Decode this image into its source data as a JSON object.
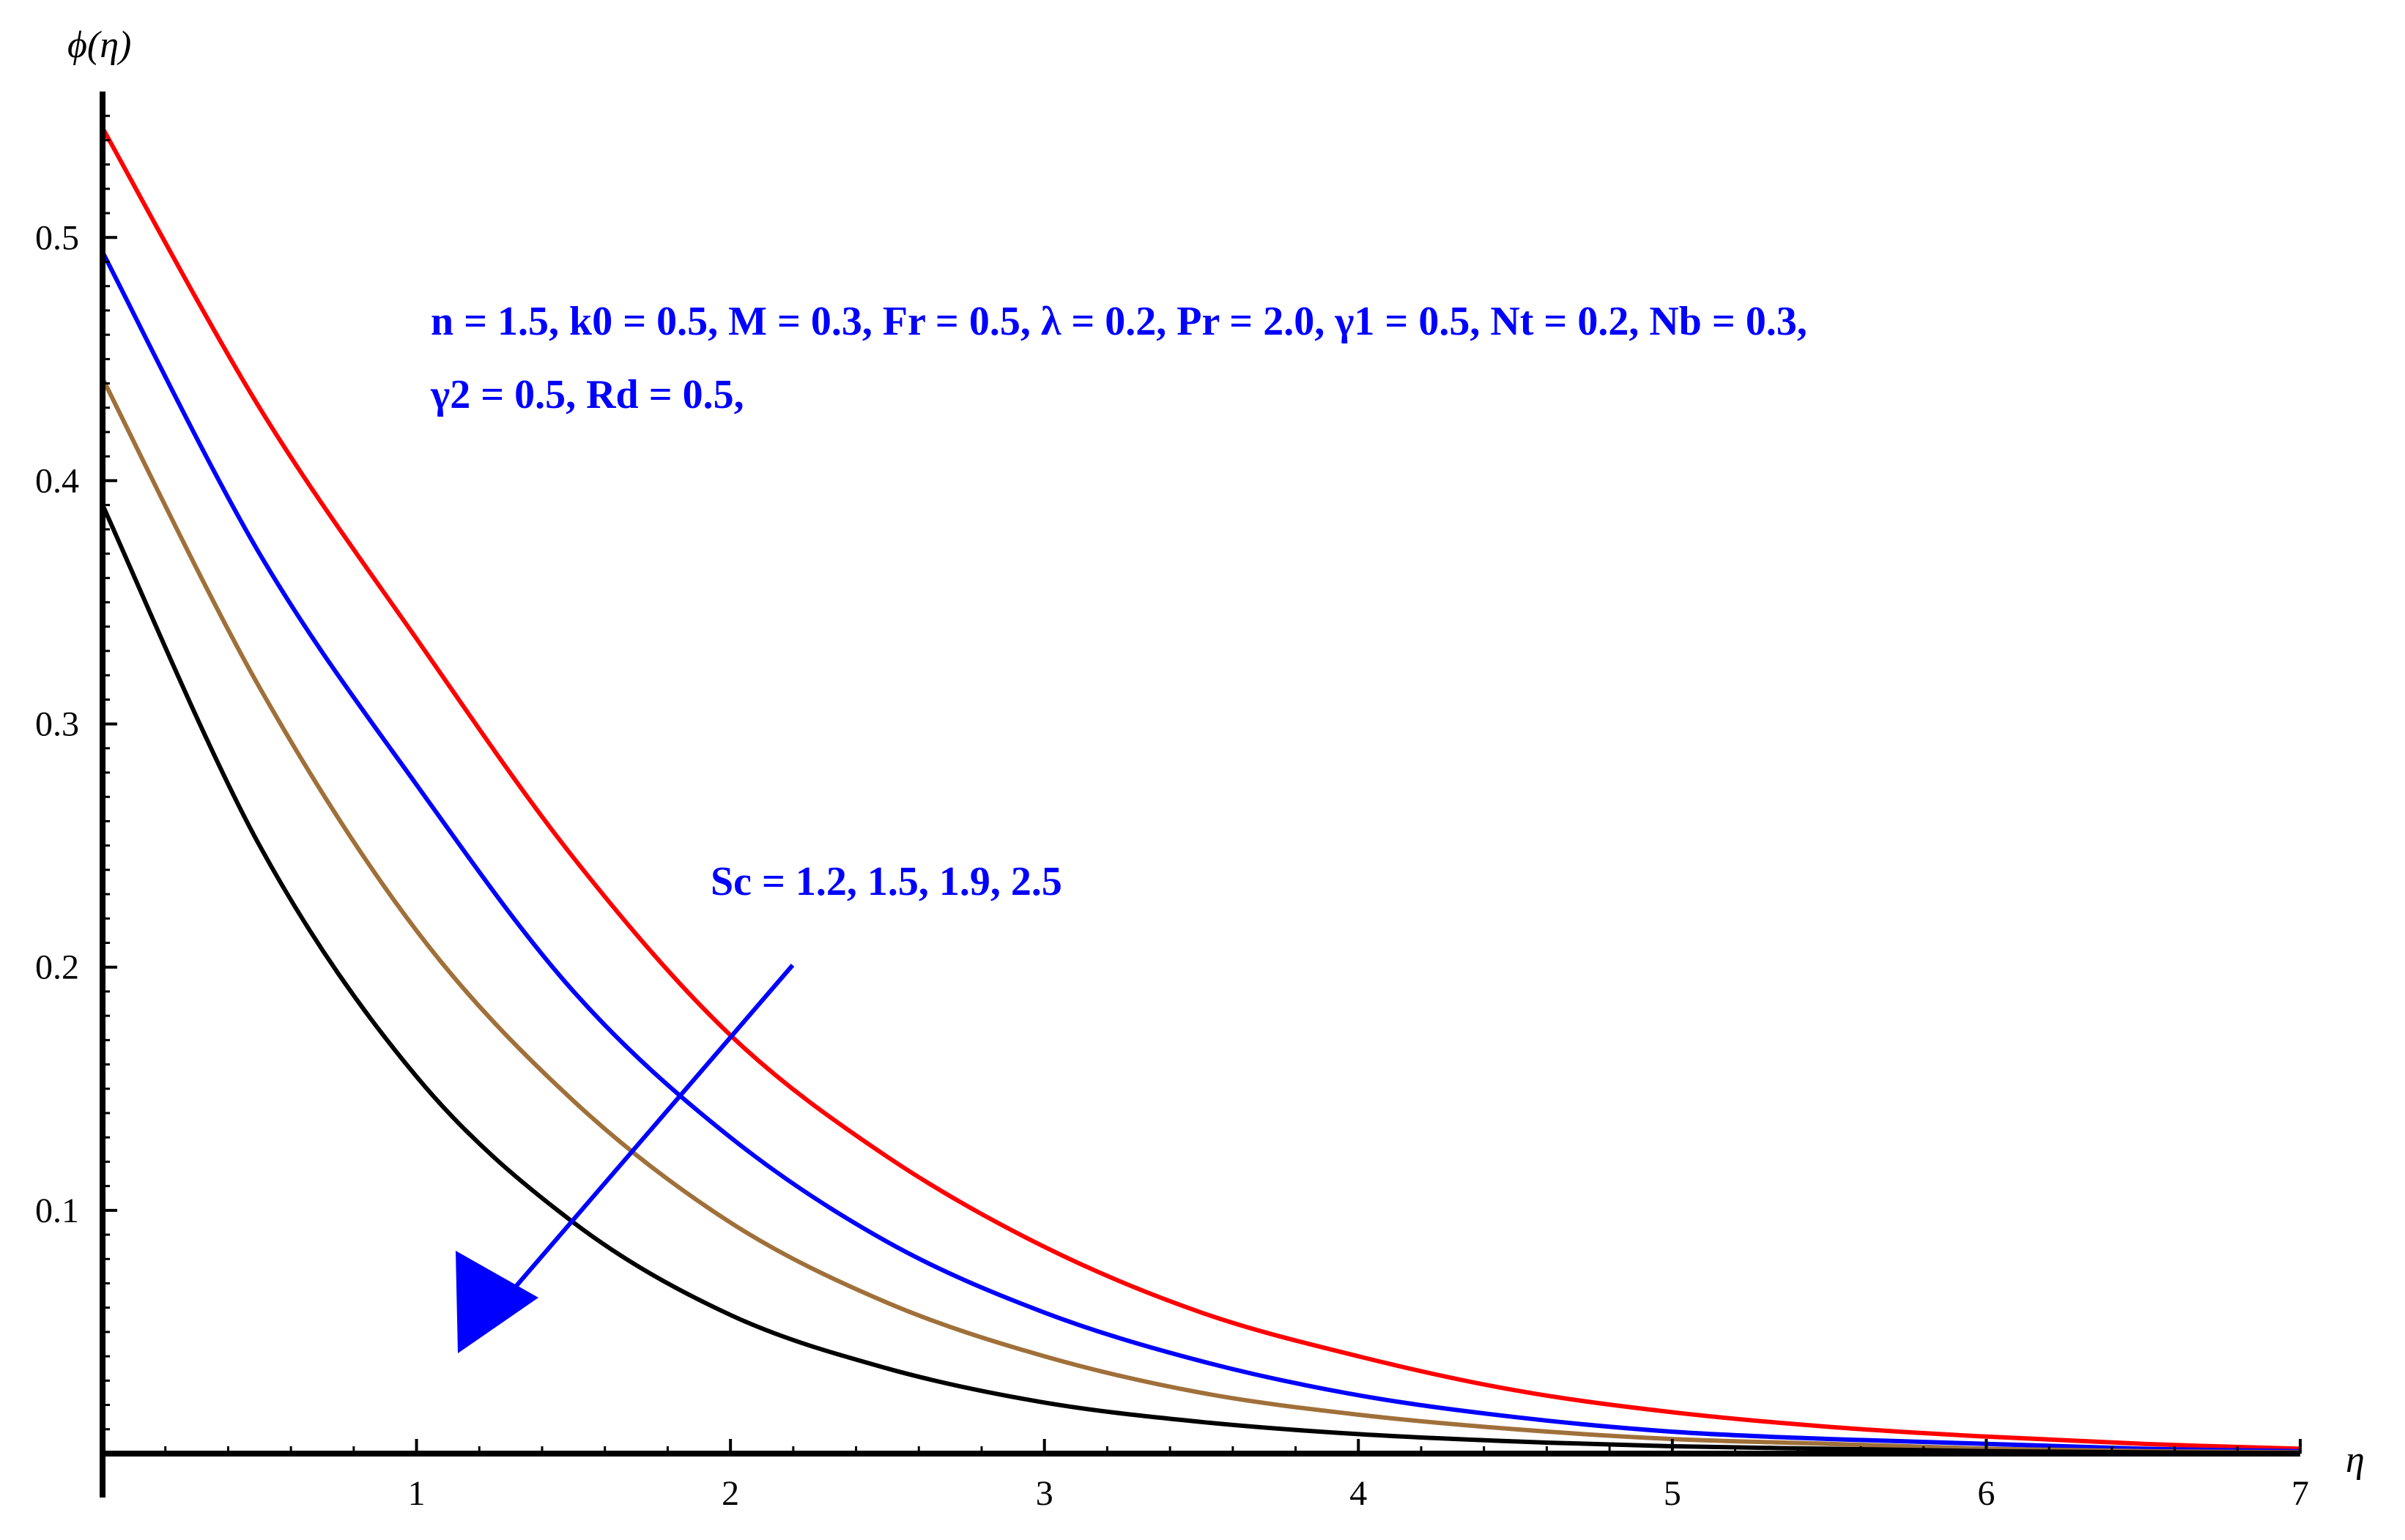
{
  "chart_data": {
    "type": "line",
    "xlabel": "η",
    "ylabel": "ϕ(η)",
    "xlim": [
      0,
      7
    ],
    "ylim": [
      0,
      0.56
    ],
    "x_ticks": [
      "1",
      "2",
      "3",
      "4",
      "5",
      "6",
      "7"
    ],
    "y_ticks": [
      "0.1",
      "0.2",
      "0.3",
      "0.4",
      "0.5"
    ],
    "grid": false,
    "parameters_line1": "n = 1.5, k0 = 0.5, M = 0.3, Fr =  0.5, λ = 0.2, Pr = 2.0, γ1 = 0.5, Nt = 0.2, Nb = 0.3,",
    "parameters_line2": "γ2 = 0.5, Rd = 0.5,",
    "annotation": "Sc = 1.2, 1.5, 1.9, 2.5",
    "arrow_direction": "increasing Sc",
    "x": [
      0,
      0.5,
      1,
      1.5,
      2,
      2.5,
      3,
      3.5,
      4,
      4.5,
      5,
      5.5,
      6,
      6.5,
      7
    ],
    "series": [
      {
        "color": "#ff0000",
        "values": [
          0.545,
          0.43,
          0.335,
          0.245,
          0.172,
          0.122,
          0.085,
          0.058,
          0.04,
          0.026,
          0.017,
          0.011,
          0.007,
          0.004,
          0.002
        ]
      },
      {
        "color": "#0000ff",
        "values": [
          0.494,
          0.37,
          0.275,
          0.19,
          0.13,
          0.087,
          0.058,
          0.038,
          0.024,
          0.015,
          0.009,
          0.006,
          0.004,
          0.002,
          0.001
        ]
      },
      {
        "color": "#a0703a",
        "values": [
          0.442,
          0.315,
          0.215,
          0.145,
          0.095,
          0.062,
          0.04,
          0.025,
          0.016,
          0.01,
          0.006,
          0.004,
          0.002,
          0.001,
          0.0005
        ]
      },
      {
        "color": "#000000",
        "values": [
          0.39,
          0.25,
          0.155,
          0.095,
          0.057,
          0.035,
          0.021,
          0.013,
          0.008,
          0.005,
          0.003,
          0.002,
          0.001,
          0.0005,
          0.0002
        ]
      }
    ]
  }
}
